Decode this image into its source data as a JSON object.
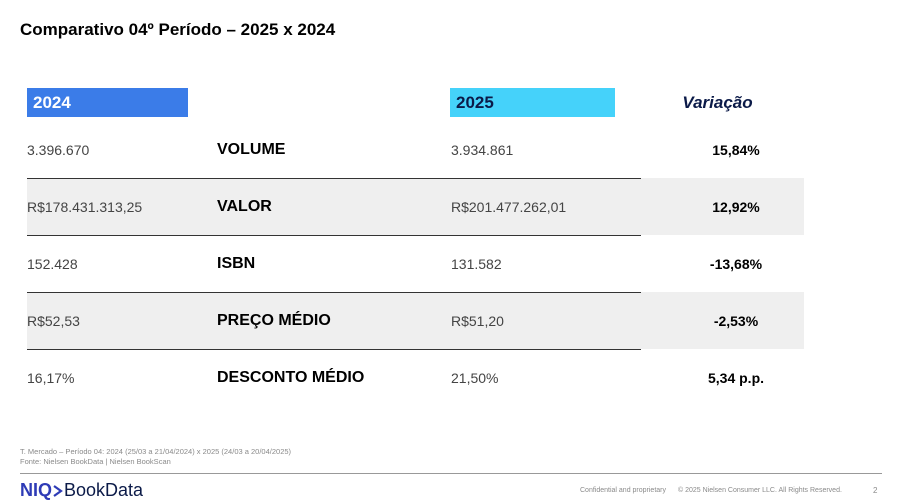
{
  "title": "Comparativo 04º Período – 2025 x 2024",
  "headers": {
    "year_2024": "2024",
    "year_2025": "2025",
    "variation": "Variação"
  },
  "rows": [
    {
      "v2024": "3.396.670",
      "metric": "VOLUME",
      "v2025": "3.934.861",
      "variation": "15,84%"
    },
    {
      "v2024": "R$178.431.313,25",
      "metric": "VALOR",
      "v2025": "R$201.477.262,01",
      "variation": "12,92%"
    },
    {
      "v2024": "152.428",
      "metric": "ISBN",
      "v2025": "131.582",
      "variation": "-13,68%"
    },
    {
      "v2024": "R$52,53",
      "metric": "PREÇO MÉDIO",
      "v2025": "R$51,20",
      "variation": "-2,53%"
    },
    {
      "v2024": "16,17%",
      "metric": "DESCONTO MÉDIO",
      "v2025": "21,50%",
      "variation": "5,34 p.p."
    }
  ],
  "footnote": {
    "line1": "T. Mercado – Período 04: 2024 (25/03 a 21/04/2024) x 2025 (24/03 a 20/04/2025)",
    "line2": "Fonte: Nielsen BookData | Nielsen BookScan"
  },
  "footer": {
    "logo_niq": "NIQ",
    "logo_bookdata": "BookData",
    "confidential": "Confidential and proprietary",
    "copyright": "© 2025 Nielsen Consumer LLC. All Rights Reserved.",
    "page_number": "2"
  },
  "colors": {
    "header_2024": "#3b7ce8",
    "header_2025": "#45d2fa",
    "brand": "#2e3bb6"
  }
}
